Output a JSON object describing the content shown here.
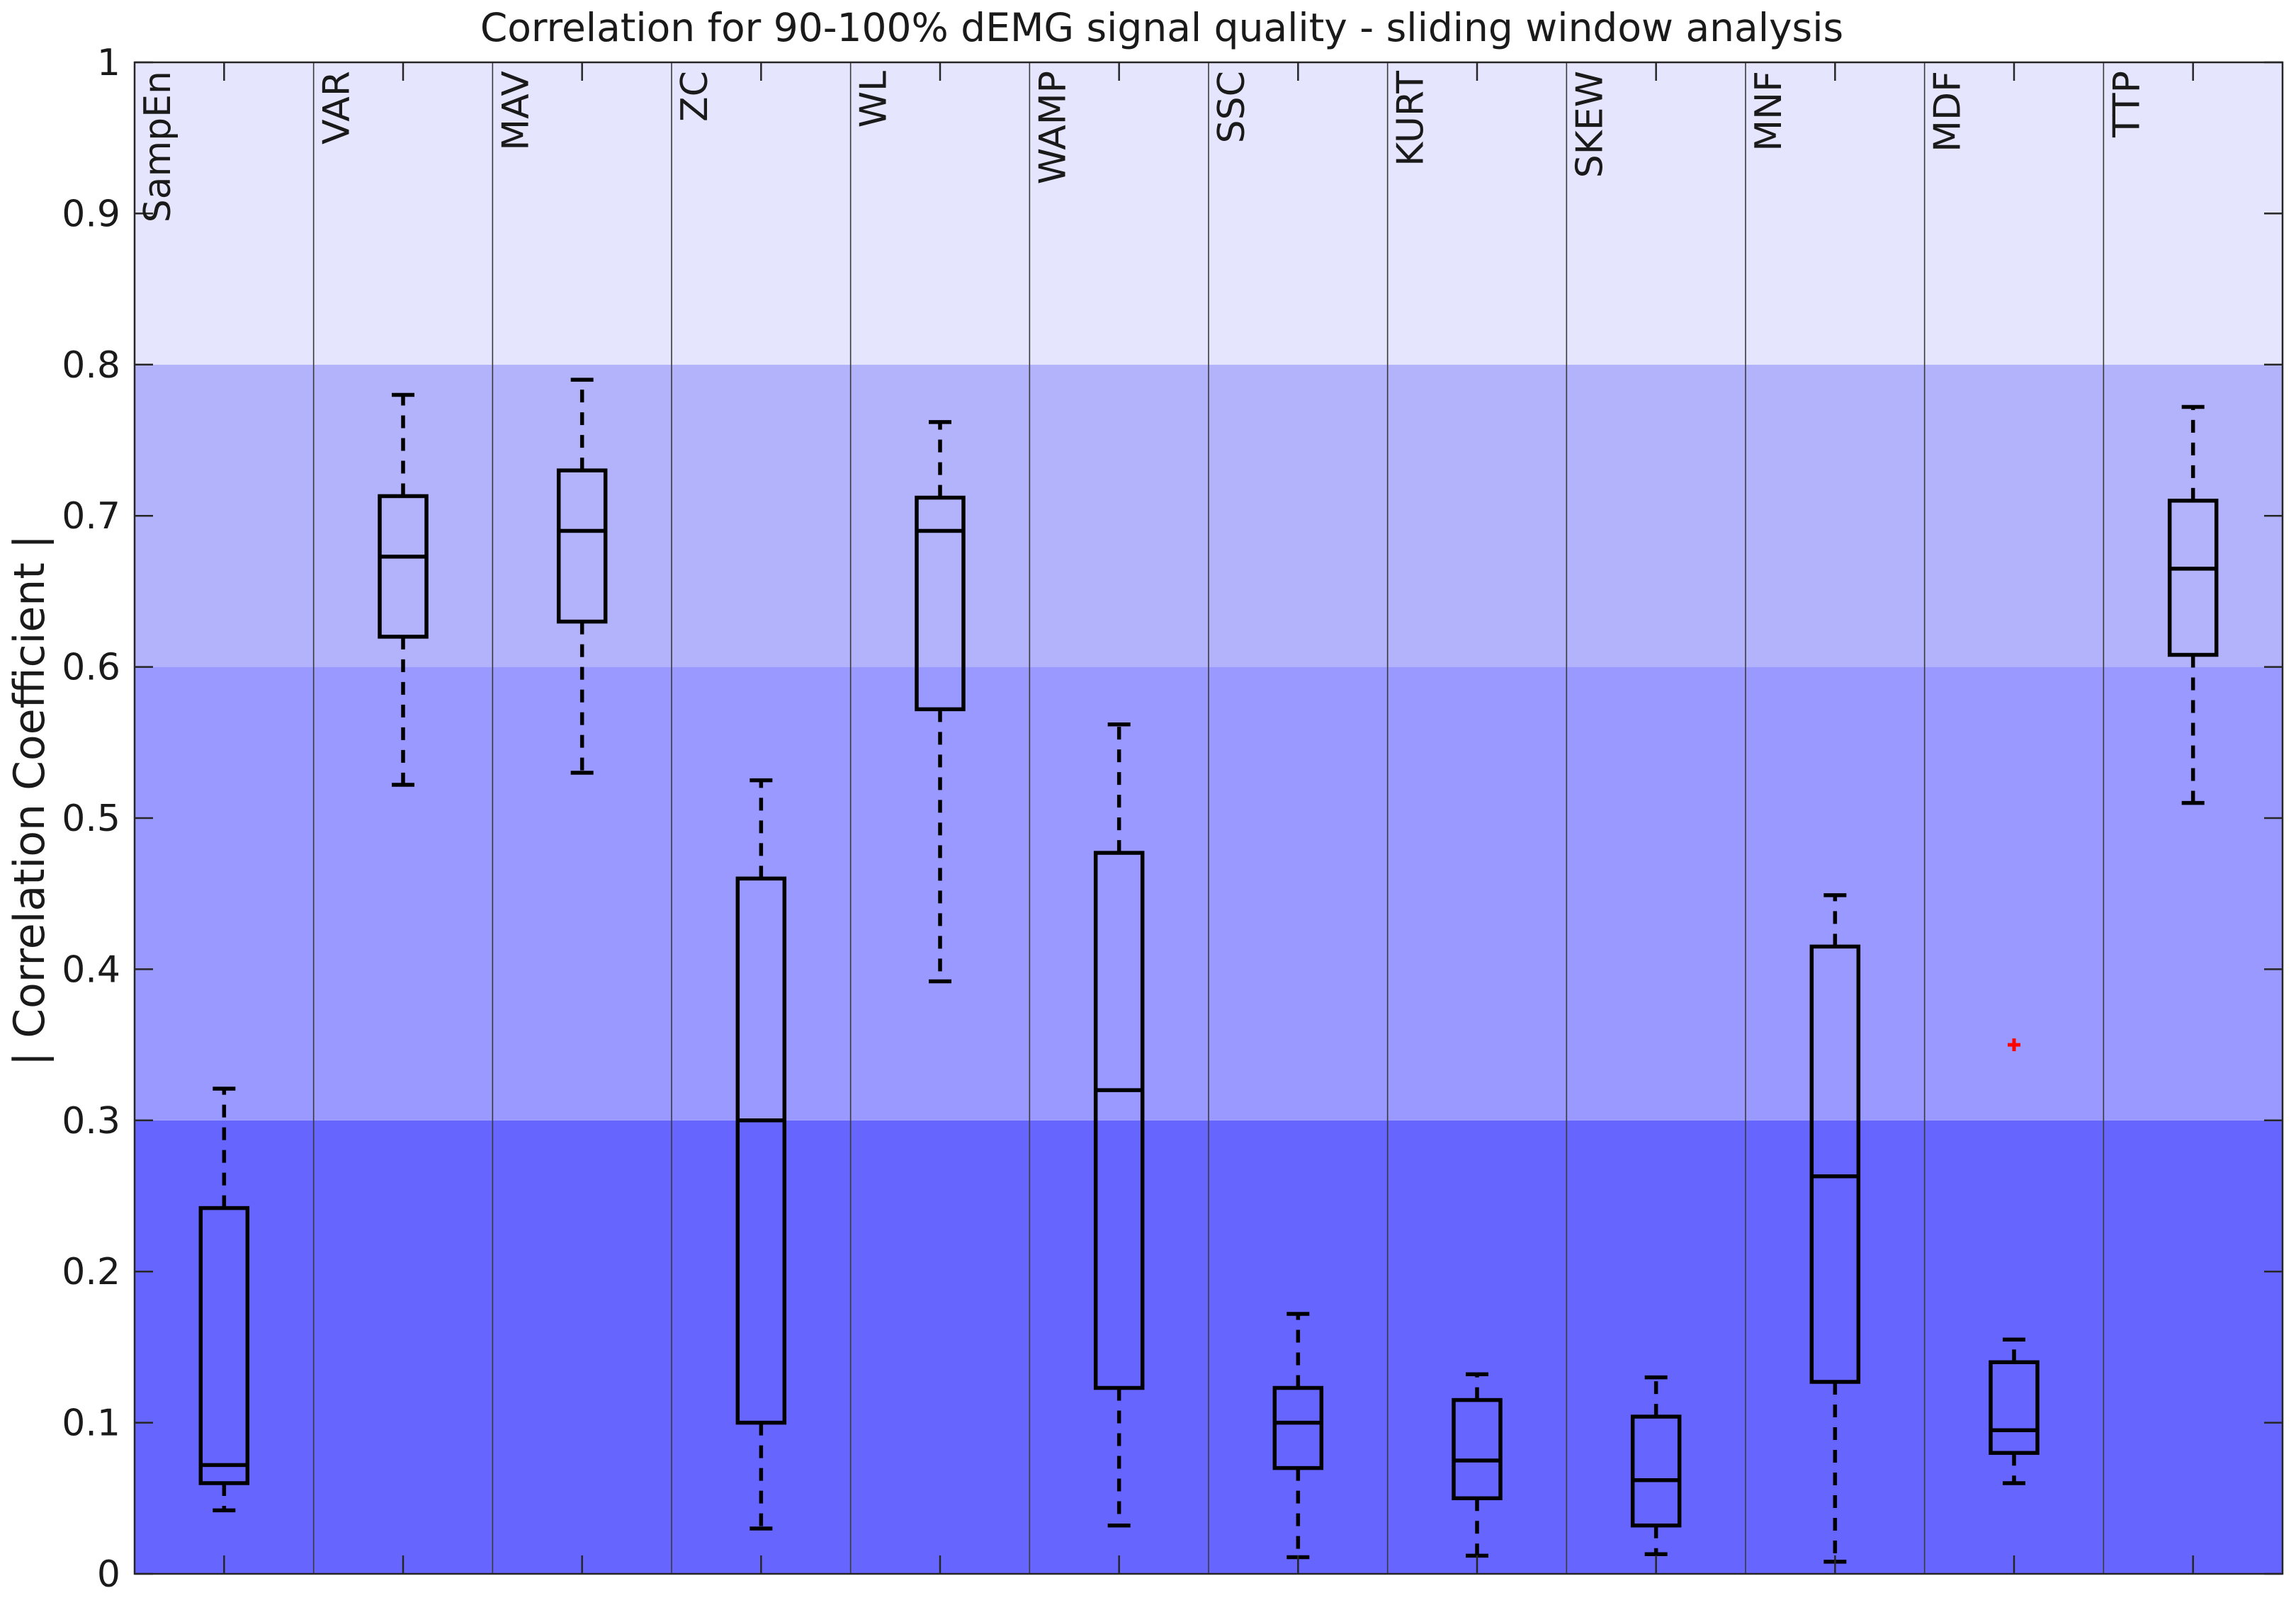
{
  "chart_data": {
    "type": "box",
    "title": "Correlation for 90-100% dEMG signal quality - sliding window analysis",
    "xlabel": "",
    "ylabel": "| Correlation Coefficient |",
    "ylim": [
      0,
      1
    ],
    "yticks": [
      0,
      0.1,
      0.2,
      0.3,
      0.4,
      0.5,
      0.6,
      0.7,
      0.8,
      0.9,
      1
    ],
    "ytick_labels": [
      "0",
      "0.1",
      "0.2",
      "0.3",
      "0.4",
      "0.5",
      "0.6",
      "0.7",
      "0.8",
      "0.9",
      "1"
    ],
    "grid": false,
    "bands": [
      {
        "from": 0,
        "to": 0.3,
        "color": "#6666ff"
      },
      {
        "from": 0.3,
        "to": 0.6,
        "color": "#9999ff"
      },
      {
        "from": 0.6,
        "to": 0.8,
        "color": "#b3b3fb"
      },
      {
        "from": 0.8,
        "to": 1.0,
        "color": "#e5e5fd"
      }
    ],
    "categories": [
      "SampEn",
      "VAR",
      "MAV",
      "ZC",
      "WL",
      "WAMP",
      "SSC",
      "KURT",
      "SKEW",
      "MNF",
      "MDF",
      "TTP"
    ],
    "boxes": [
      {
        "label": "SampEn",
        "min": 0.042,
        "q1": 0.06,
        "median": 0.072,
        "q3": 0.242,
        "max": 0.321
      },
      {
        "label": "VAR",
        "min": 0.522,
        "q1": 0.62,
        "median": 0.673,
        "q3": 0.713,
        "max": 0.78
      },
      {
        "label": "MAV",
        "min": 0.53,
        "q1": 0.63,
        "median": 0.69,
        "q3": 0.73,
        "max": 0.79
      },
      {
        "label": "ZC",
        "min": 0.03,
        "q1": 0.1,
        "median": 0.3,
        "q3": 0.46,
        "max": 0.525
      },
      {
        "label": "WL",
        "min": 0.392,
        "q1": 0.572,
        "median": 0.69,
        "q3": 0.712,
        "max": 0.762
      },
      {
        "label": "WAMP",
        "min": 0.032,
        "q1": 0.123,
        "median": 0.32,
        "q3": 0.477,
        "max": 0.562
      },
      {
        "label": "SSC",
        "min": 0.011,
        "q1": 0.07,
        "median": 0.1,
        "q3": 0.123,
        "max": 0.172
      },
      {
        "label": "KURT",
        "min": 0.012,
        "q1": 0.05,
        "median": 0.075,
        "q3": 0.115,
        "max": 0.132
      },
      {
        "label": "SKEW",
        "min": 0.013,
        "q1": 0.032,
        "median": 0.062,
        "q3": 0.104,
        "max": 0.13
      },
      {
        "label": "MNF",
        "min": 0.008,
        "q1": 0.127,
        "median": 0.263,
        "q3": 0.415,
        "max": 0.449
      },
      {
        "label": "MDF",
        "min": 0.06,
        "q1": 0.08,
        "median": 0.095,
        "q3": 0.14,
        "max": 0.155
      },
      {
        "label": "TTP",
        "min": 0.51,
        "q1": 0.608,
        "median": 0.665,
        "q3": 0.71,
        "max": 0.772
      }
    ],
    "outliers": [
      {
        "label": "MDF",
        "value": 0.35,
        "color": "#ff0000"
      }
    ]
  }
}
